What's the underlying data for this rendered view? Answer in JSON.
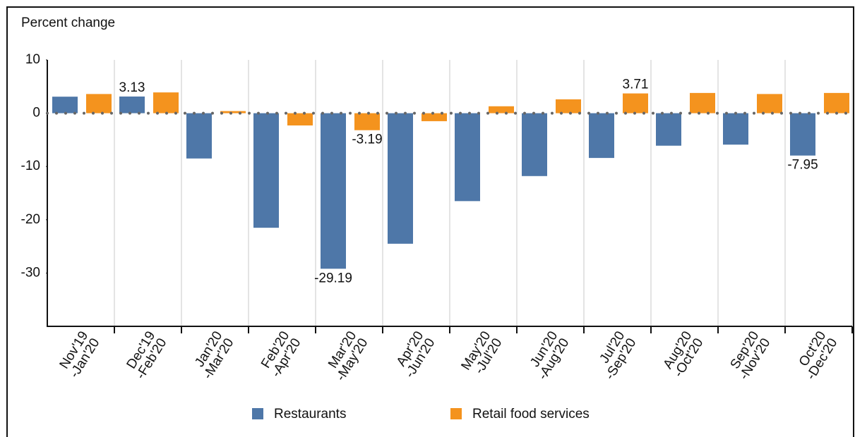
{
  "chart_data": {
    "type": "bar",
    "y_label": "Percent change",
    "categories": [
      [
        "Nov'19",
        "-Jan'20"
      ],
      [
        "Dec'19",
        "-Feb'20"
      ],
      [
        "Jan'20",
        "-Mar'20"
      ],
      [
        "Feb'20",
        "-Apr'20"
      ],
      [
        "Mar'20",
        "-May'20"
      ],
      [
        "Apr'20",
        "-Jun'20"
      ],
      [
        "May'20",
        "-Jul'20"
      ],
      [
        "Jun'20",
        "-Aug'20"
      ],
      [
        "Jul'20",
        "-Sep'20"
      ],
      [
        "Aug'20",
        "-Oct'20"
      ],
      [
        "Sep'20",
        "-Nov'20"
      ],
      [
        "Oct'20",
        "-Dec'20"
      ]
    ],
    "series": [
      {
        "name": "Restaurants",
        "color": "#4e77a8",
        "values": [
          3.1,
          3.13,
          -8.5,
          -21.5,
          -29.19,
          -24.5,
          -16.5,
          -11.8,
          -8.4,
          -6.1,
          -5.9,
          -7.95
        ],
        "value_labels": [
          null,
          "3.13",
          null,
          null,
          "-29.19",
          null,
          null,
          null,
          null,
          null,
          null,
          "-7.95"
        ]
      },
      {
        "name": "Retail food services",
        "color": "#f4931e",
        "values": [
          3.6,
          3.9,
          0.4,
          -2.3,
          -3.19,
          -1.5,
          1.3,
          2.6,
          3.71,
          3.8,
          3.6,
          3.8
        ],
        "value_labels": [
          null,
          null,
          null,
          null,
          "-3.19",
          null,
          null,
          null,
          "3.71",
          null,
          null,
          null
        ]
      }
    ],
    "ylim": [
      -40,
      10
    ],
    "yticks": [
      -30,
      -20,
      -10,
      0,
      10
    ],
    "grid": true,
    "legend": "bottom"
  }
}
